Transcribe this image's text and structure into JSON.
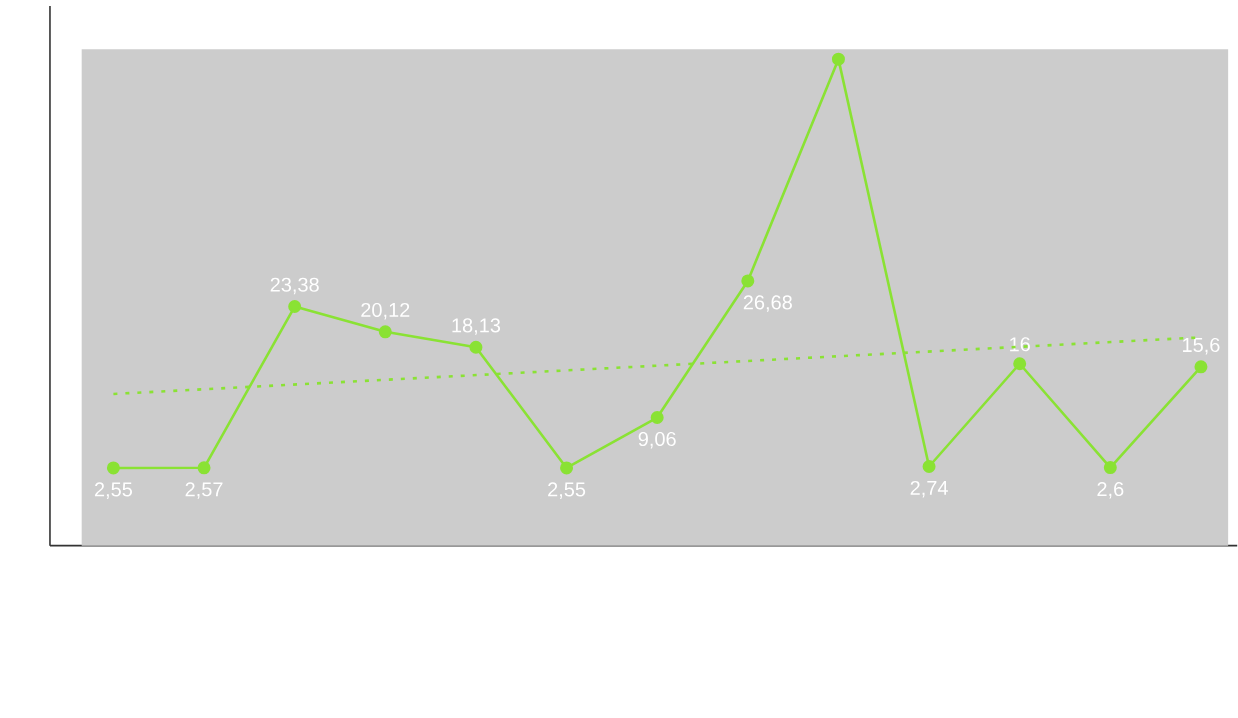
{
  "chart_data": {
    "type": "line",
    "categories": [
      null,
      null,
      null,
      null,
      null,
      null,
      null,
      null,
      null,
      null,
      null,
      null,
      null
    ],
    "series": [
      {
        "color": "#8ae234",
        "values": [
          2.55,
          2.57,
          23.38,
          20.12,
          18.13,
          2.55,
          9.06,
          26.68,
          55.3,
          2.74,
          16,
          2.6,
          15.6
        ],
        "value_labels": [
          "2,55",
          "2,57",
          "23,38",
          "20,12",
          "18,13",
          "2,55",
          "9,06",
          "26,68",
          null,
          "2,74",
          "16",
          "2,6",
          "15,6"
        ],
        "marker": "circle",
        "line_style": "solid"
      },
      {
        "type": "line",
        "color": "#8ae234",
        "values": [
          12.1,
          null,
          null,
          null,
          null,
          null,
          null,
          null,
          null,
          null,
          null,
          null,
          19.4
        ],
        "marker": "none",
        "line_style": "dotted"
      }
    ]
  }
}
